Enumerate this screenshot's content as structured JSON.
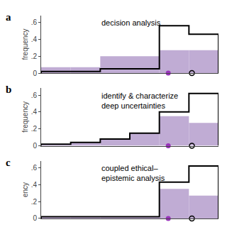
{
  "chart_data": [
    {
      "type": "histogram",
      "label": "a",
      "title": "decision analysis",
      "y_label": "frequency",
      "bins": [
        1,
        2,
        3,
        4,
        5,
        6,
        7
      ],
      "series": [
        {
          "type": "bar",
          "color": "#c0acd4",
          "values": [
            0.07,
            0.07,
            0.2,
            0.2,
            0.27,
            0.27
          ]
        },
        {
          "type": "step",
          "color": "#000000",
          "values": [
            0.02,
            0.02,
            0.05,
            0.05,
            0.56,
            0.46
          ]
        }
      ],
      "points": [
        {
          "x": 5.3,
          "y": 0.0,
          "color": "#9933BB",
          "marker": "filled"
        },
        {
          "x": 6.1,
          "y": 0.0,
          "color": "#000000",
          "marker": "open"
        }
      ],
      "xlim": [
        1,
        7
      ],
      "ylim": [
        0,
        0.68
      ],
      "yticks": [
        0,
        {
          "value": 0.2,
          "label": ".2"
        },
        {
          "value": 0.4,
          "label": ".4"
        },
        {
          "value": 0.6,
          "label": ".6"
        }
      ],
      "tick_labels": "y",
      "grid": false
    },
    {
      "type": "histogram",
      "label": "b",
      "title": "identify & characterize\ndeep uncertainties",
      "y_label": "frequency",
      "bins": [
        1,
        2,
        3,
        4,
        5,
        6,
        7
      ],
      "series": [
        {
          "type": "bar",
          "color": "#c0acd4",
          "values": [
            0.02,
            0.04,
            0.08,
            0.15,
            0.35,
            0.27
          ]
        },
        {
          "type": "step",
          "color": "#000000",
          "values": [
            0.02,
            0.04,
            0.08,
            0.15,
            0.4,
            0.62
          ]
        }
      ],
      "points": [
        {
          "x": 5.3,
          "y": 0.0,
          "color": "#9933BB",
          "marker": "filled"
        },
        {
          "x": 6.1,
          "y": 0.0,
          "color": "#000000",
          "marker": "open"
        }
      ],
      "xlim": [
        1,
        7
      ],
      "ylim": [
        0,
        0.68
      ],
      "yticks": [
        0,
        {
          "value": 0.2,
          "label": ".2"
        },
        {
          "value": 0.4,
          "label": ".4"
        },
        {
          "value": 0.6,
          "label": ".6"
        }
      ],
      "tick_labels": "y",
      "grid": false
    },
    {
      "type": "histogram",
      "label": "c",
      "title": "coupled ethical–\nepistemic analysis",
      "y_label": "ency",
      "bins": [
        1,
        2,
        3,
        4,
        5,
        6,
        7
      ],
      "series": [
        {
          "type": "bar",
          "color": "#c0acd4",
          "values": [
            0.02,
            0.02,
            0.02,
            0.02,
            0.35,
            0.27
          ]
        },
        {
          "type": "step",
          "color": "#000000",
          "values": [
            0.02,
            0.02,
            0.02,
            0.02,
            0.43,
            0.62
          ]
        }
      ],
      "points": [
        {
          "x": 5.3,
          "y": 0.0,
          "color": "#9933BB",
          "marker": "filled"
        },
        {
          "x": 6.1,
          "y": 0.0,
          "color": "#000000",
          "marker": "open"
        }
      ],
      "xlim": [
        1,
        7
      ],
      "ylim": [
        0,
        0.68
      ],
      "yticks": [
        0,
        {
          "value": 0.2,
          "label": ".2"
        },
        {
          "value": 0.4,
          "label": ".4"
        },
        {
          "value": 0.6,
          "label": ".6"
        }
      ],
      "tick_labels": "y",
      "grid": false
    }
  ]
}
